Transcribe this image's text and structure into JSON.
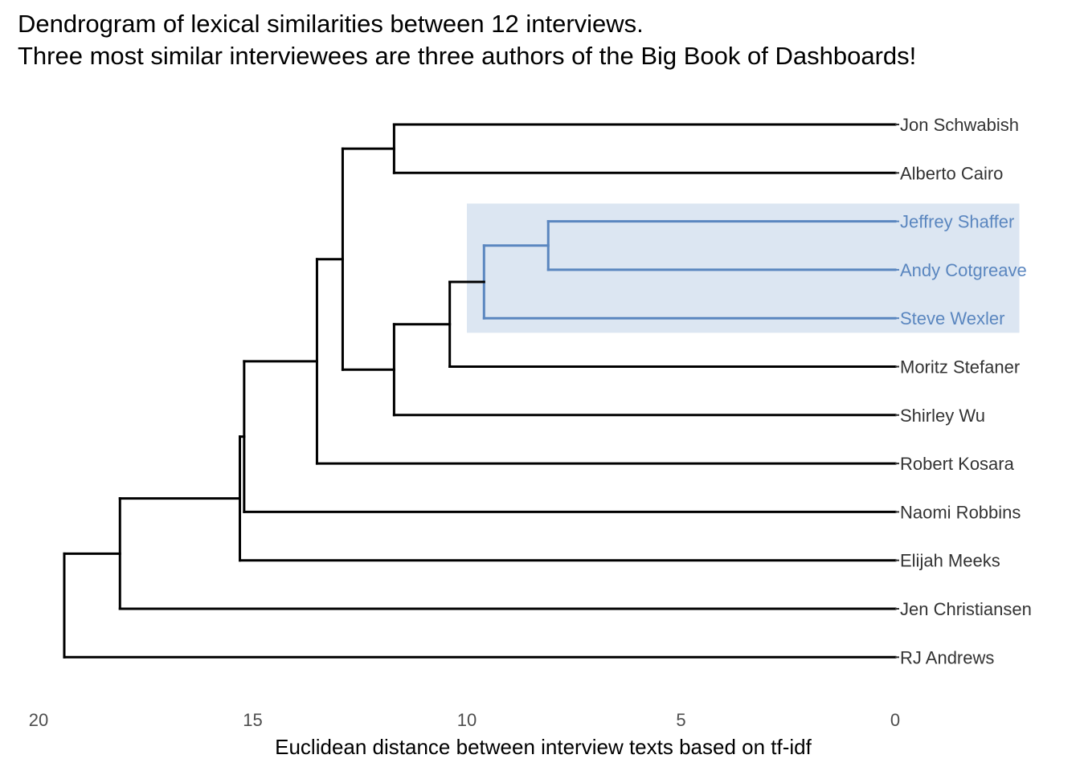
{
  "chart_data": {
    "type": "dendrogram",
    "title": "Dendrogram of lexical similarities between 12 interviews.",
    "subtitle": "Three most similar interviewees are three authors of the Big Book of Dashboards!",
    "xlabel": "Euclidean distance between interview texts based on tf-idf",
    "ylabel": "",
    "xlim": [
      20,
      0
    ],
    "x_ticks": [
      {
        "value": 20,
        "label": "20"
      },
      {
        "value": 15,
        "label": "15"
      },
      {
        "value": 10,
        "label": "10"
      },
      {
        "value": 5,
        "label": "5"
      },
      {
        "value": 0,
        "label": "0"
      }
    ],
    "leaves": [
      {
        "label": "Jon Schwabish",
        "highlight": false
      },
      {
        "label": "Alberto Cairo",
        "highlight": false
      },
      {
        "label": "Jeffrey Shaffer",
        "highlight": true
      },
      {
        "label": "Andy Cotgreave",
        "highlight": true
      },
      {
        "label": "Steve Wexler",
        "highlight": true
      },
      {
        "label": "Moritz Stefaner",
        "highlight": false
      },
      {
        "label": "Shirley Wu",
        "highlight": false
      },
      {
        "label": "Robert Kosara",
        "highlight": false
      },
      {
        "label": "Naomi Robbins",
        "highlight": false
      },
      {
        "label": "Elijah Meeks",
        "highlight": false
      },
      {
        "label": "Jen Christiansen",
        "highlight": false
      },
      {
        "label": "RJ Andrews",
        "highlight": false
      }
    ],
    "merges": [
      {
        "id": "c1",
        "children": [
          "Jeffrey Shaffer",
          "Andy Cotgreave"
        ],
        "height": 8.1,
        "highlight": true
      },
      {
        "id": "c2",
        "children": [
          "c1",
          "Steve Wexler"
        ],
        "height": 9.6,
        "highlight": true
      },
      {
        "id": "c3",
        "children": [
          "c2",
          "Moritz Stefaner"
        ],
        "height": 10.4,
        "highlight": false
      },
      {
        "id": "c4",
        "children": [
          "c3",
          "Shirley Wu"
        ],
        "height": 11.7,
        "highlight": false
      },
      {
        "id": "c5",
        "children": [
          "Jon Schwabish",
          "Alberto Cairo"
        ],
        "height": 11.7,
        "highlight": false
      },
      {
        "id": "c6",
        "children": [
          "c5",
          "c4"
        ],
        "height": 12.9,
        "highlight": false
      },
      {
        "id": "c7",
        "children": [
          "c6",
          "Robert Kosara"
        ],
        "height": 13.5,
        "highlight": false
      },
      {
        "id": "c8",
        "children": [
          "c7",
          "Naomi Robbins"
        ],
        "height": 15.2,
        "highlight": false
      },
      {
        "id": "c9",
        "children": [
          "c8",
          "Elijah Meeks"
        ],
        "height": 15.3,
        "highlight": false
      },
      {
        "id": "c10",
        "children": [
          "c9",
          "Jen Christiansen"
        ],
        "height": 18.1,
        "highlight": false
      },
      {
        "id": "c11",
        "children": [
          "c10",
          "RJ Andrews"
        ],
        "height": 19.4,
        "highlight": false
      }
    ],
    "highlight_box": {
      "from_distance": 10.0,
      "to_distance": -2.9,
      "leaves": [
        "Jeffrey Shaffer",
        "Andy Cotgreave",
        "Steve Wexler"
      ]
    },
    "colors": {
      "highlight": "#5a86bf",
      "highlight_fill": "#dce6f2",
      "line": "#000000",
      "label": "#333333"
    },
    "grid": false,
    "legend": "none"
  }
}
